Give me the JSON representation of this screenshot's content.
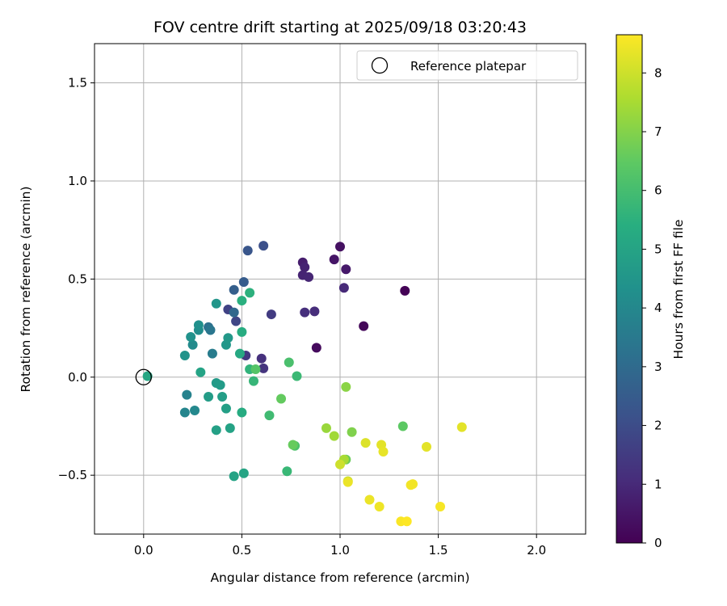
{
  "chart_data": {
    "type": "scatter",
    "title": "FOV centre drift starting at 2025/09/18 03:20:43",
    "xlabel": "Angular distance from reference (arcmin)",
    "ylabel": "Rotation from reference (arcmin)",
    "xlim": [
      -0.25,
      2.25
    ],
    "ylim": [
      -0.8,
      1.7
    ],
    "xticks": [
      0.0,
      0.5,
      1.0,
      1.5,
      2.0
    ],
    "xtick_labels": [
      "0.0",
      "0.5",
      "1.0",
      "1.5",
      "2.0"
    ],
    "yticks": [
      -0.5,
      0.0,
      0.5,
      1.0,
      1.5
    ],
    "ytick_labels": [
      "−0.5",
      "0.0",
      "0.5",
      "1.0",
      "1.5"
    ],
    "grid": true,
    "legend": {
      "position": "top-right",
      "entries": [
        "Reference platepar"
      ]
    },
    "reference_point": {
      "x": 0.0,
      "y": 0.0,
      "label": "Reference platepar"
    },
    "colorbar": {
      "label": "Hours from first FF file",
      "range": [
        0,
        8.65
      ],
      "ticks": [
        0,
        1,
        2,
        3,
        4,
        5,
        6,
        7,
        8
      ],
      "tick_labels": [
        "0",
        "1",
        "2",
        "3",
        "4",
        "5",
        "6",
        "7",
        "8"
      ],
      "colormap": "viridis"
    },
    "points": [
      {
        "x": 1.33,
        "y": 0.44,
        "hours": 0.05
      },
      {
        "x": 1.12,
        "y": 0.26,
        "hours": 0.15
      },
      {
        "x": 0.88,
        "y": 0.15,
        "hours": 0.25
      },
      {
        "x": 1.0,
        "y": 0.665,
        "hours": 0.4
      },
      {
        "x": 0.97,
        "y": 0.6,
        "hours": 0.5
      },
      {
        "x": 1.03,
        "y": 0.55,
        "hours": 0.6
      },
      {
        "x": 0.81,
        "y": 0.585,
        "hours": 0.7
      },
      {
        "x": 0.82,
        "y": 0.56,
        "hours": 0.8
      },
      {
        "x": 0.81,
        "y": 0.52,
        "hours": 0.85
      },
      {
        "x": 0.84,
        "y": 0.51,
        "hours": 0.9
      },
      {
        "x": 1.02,
        "y": 0.455,
        "hours": 1.0
      },
      {
        "x": 0.87,
        "y": 0.335,
        "hours": 1.1
      },
      {
        "x": 0.82,
        "y": 0.33,
        "hours": 1.15
      },
      {
        "x": 0.6,
        "y": 0.095,
        "hours": 1.2
      },
      {
        "x": 0.61,
        "y": 0.045,
        "hours": 1.3
      },
      {
        "x": 0.52,
        "y": 0.11,
        "hours": 1.4
      },
      {
        "x": 0.65,
        "y": 0.32,
        "hours": 1.5
      },
      {
        "x": 0.43,
        "y": 0.345,
        "hours": 1.7
      },
      {
        "x": 0.47,
        "y": 0.285,
        "hours": 1.8
      },
      {
        "x": 0.61,
        "y": 0.67,
        "hours": 2.1
      },
      {
        "x": 0.53,
        "y": 0.645,
        "hours": 2.3
      },
      {
        "x": 0.51,
        "y": 0.485,
        "hours": 2.5
      },
      {
        "x": 0.46,
        "y": 0.445,
        "hours": 2.6
      },
      {
        "x": 0.46,
        "y": 0.33,
        "hours": 2.9
      },
      {
        "x": 0.33,
        "y": 0.255,
        "hours": 3.2
      },
      {
        "x": 0.34,
        "y": 0.24,
        "hours": 3.4
      },
      {
        "x": 0.35,
        "y": 0.12,
        "hours": 3.6
      },
      {
        "x": 0.22,
        "y": -0.09,
        "hours": 3.8
      },
      {
        "x": 0.21,
        "y": -0.18,
        "hours": 3.9
      },
      {
        "x": 0.26,
        "y": -0.17,
        "hours": 4.0
      },
      {
        "x": 0.25,
        "y": 0.165,
        "hours": 4.1
      },
      {
        "x": 0.28,
        "y": 0.24,
        "hours": 4.2
      },
      {
        "x": 0.28,
        "y": 0.265,
        "hours": 4.3
      },
      {
        "x": 0.24,
        "y": 0.205,
        "hours": 4.35
      },
      {
        "x": 0.21,
        "y": 0.11,
        "hours": 4.4
      },
      {
        "x": 0.37,
        "y": 0.375,
        "hours": 4.5
      },
      {
        "x": 0.42,
        "y": 0.165,
        "hours": 4.55
      },
      {
        "x": 0.43,
        "y": 0.2,
        "hours": 4.6
      },
      {
        "x": 0.37,
        "y": -0.03,
        "hours": 4.65
      },
      {
        "x": 0.39,
        "y": -0.04,
        "hours": 4.7
      },
      {
        "x": 0.33,
        "y": -0.1,
        "hours": 4.75
      },
      {
        "x": 0.4,
        "y": -0.1,
        "hours": 4.8
      },
      {
        "x": 0.42,
        "y": -0.16,
        "hours": 4.85
      },
      {
        "x": 0.37,
        "y": -0.27,
        "hours": 4.9
      },
      {
        "x": 0.44,
        "y": -0.26,
        "hours": 4.95
      },
      {
        "x": 0.29,
        "y": 0.025,
        "hours": 5.0
      },
      {
        "x": 0.46,
        "y": -0.505,
        "hours": 5.0
      },
      {
        "x": 0.51,
        "y": -0.49,
        "hours": 5.05
      },
      {
        "x": 0.02,
        "y": 0.005,
        "hours": 5.1
      },
      {
        "x": 0.49,
        "y": 0.12,
        "hours": 5.2
      },
      {
        "x": 0.5,
        "y": -0.18,
        "hours": 5.3
      },
      {
        "x": 0.5,
        "y": 0.23,
        "hours": 5.35
      },
      {
        "x": 0.5,
        "y": 0.39,
        "hours": 5.45
      },
      {
        "x": 0.54,
        "y": 0.43,
        "hours": 5.5
      },
      {
        "x": 0.54,
        "y": 0.04,
        "hours": 5.6
      },
      {
        "x": 0.56,
        "y": -0.02,
        "hours": 5.7
      },
      {
        "x": 0.73,
        "y": -0.48,
        "hours": 5.75
      },
      {
        "x": 0.78,
        "y": 0.005,
        "hours": 5.8
      },
      {
        "x": 0.64,
        "y": -0.195,
        "hours": 5.9
      },
      {
        "x": 0.74,
        "y": 0.075,
        "hours": 6.1
      },
      {
        "x": 0.57,
        "y": 0.04,
        "hours": 6.3
      },
      {
        "x": 0.77,
        "y": -0.35,
        "hours": 6.15
      },
      {
        "x": 0.7,
        "y": -0.11,
        "hours": 6.55
      },
      {
        "x": 0.76,
        "y": -0.345,
        "hours": 6.6
      },
      {
        "x": 1.03,
        "y": -0.42,
        "hours": 6.65
      },
      {
        "x": 1.32,
        "y": -0.25,
        "hours": 6.45
      },
      {
        "x": 1.06,
        "y": -0.28,
        "hours": 6.95
      },
      {
        "x": 1.03,
        "y": -0.05,
        "hours": 7.1
      },
      {
        "x": 0.93,
        "y": -0.26,
        "hours": 7.3
      },
      {
        "x": 0.97,
        "y": -0.3,
        "hours": 7.4
      },
      {
        "x": 1.02,
        "y": -0.42,
        "hours": 7.5
      },
      {
        "x": 1.04,
        "y": -0.53,
        "hours": 7.85
      },
      {
        "x": 1.0,
        "y": -0.445,
        "hours": 8.0
      },
      {
        "x": 1.13,
        "y": -0.335,
        "hours": 8.2
      },
      {
        "x": 1.21,
        "y": -0.345,
        "hours": 8.3
      },
      {
        "x": 1.22,
        "y": -0.38,
        "hours": 8.35
      },
      {
        "x": 1.44,
        "y": -0.355,
        "hours": 8.3
      },
      {
        "x": 1.62,
        "y": -0.255,
        "hours": 8.3
      },
      {
        "x": 1.04,
        "y": -0.535,
        "hours": 8.4
      },
      {
        "x": 1.15,
        "y": -0.625,
        "hours": 8.4
      },
      {
        "x": 1.2,
        "y": -0.66,
        "hours": 8.45
      },
      {
        "x": 1.36,
        "y": -0.55,
        "hours": 8.5
      },
      {
        "x": 1.37,
        "y": -0.545,
        "hours": 8.5
      },
      {
        "x": 1.51,
        "y": -0.66,
        "hours": 8.55
      },
      {
        "x": 1.31,
        "y": -0.735,
        "hours": 8.6
      },
      {
        "x": 1.34,
        "y": -0.735,
        "hours": 8.65
      }
    ]
  }
}
